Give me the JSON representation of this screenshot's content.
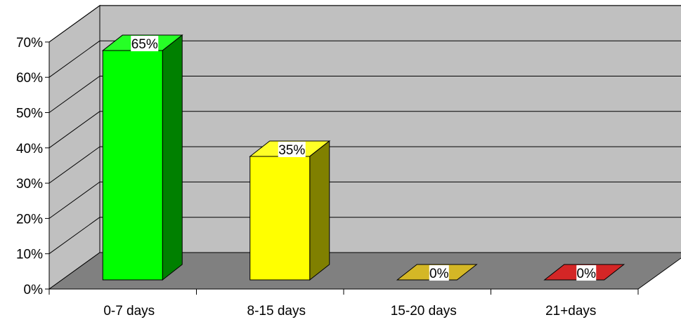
{
  "chart_data": {
    "type": "bar",
    "style": "3d",
    "categories": [
      "0-7 days",
      "8-15 days",
      "15-20 days",
      "21+days"
    ],
    "values": [
      65,
      35,
      0,
      0
    ],
    "data_labels": [
      "65%",
      "35%",
      "0%",
      "0%"
    ],
    "ylim": [
      0,
      70
    ],
    "yticks": [
      "0%",
      "10%",
      "20%",
      "30%",
      "40%",
      "50%",
      "60%",
      "70%"
    ],
    "grid": true,
    "legend": "none",
    "colors": {
      "bars": [
        "#00ff00",
        "#ffff00",
        "#ccaa00",
        "#cc0000"
      ],
      "wall": "#c0c0c0",
      "floor": "#808080",
      "gridline": "#000000"
    }
  }
}
